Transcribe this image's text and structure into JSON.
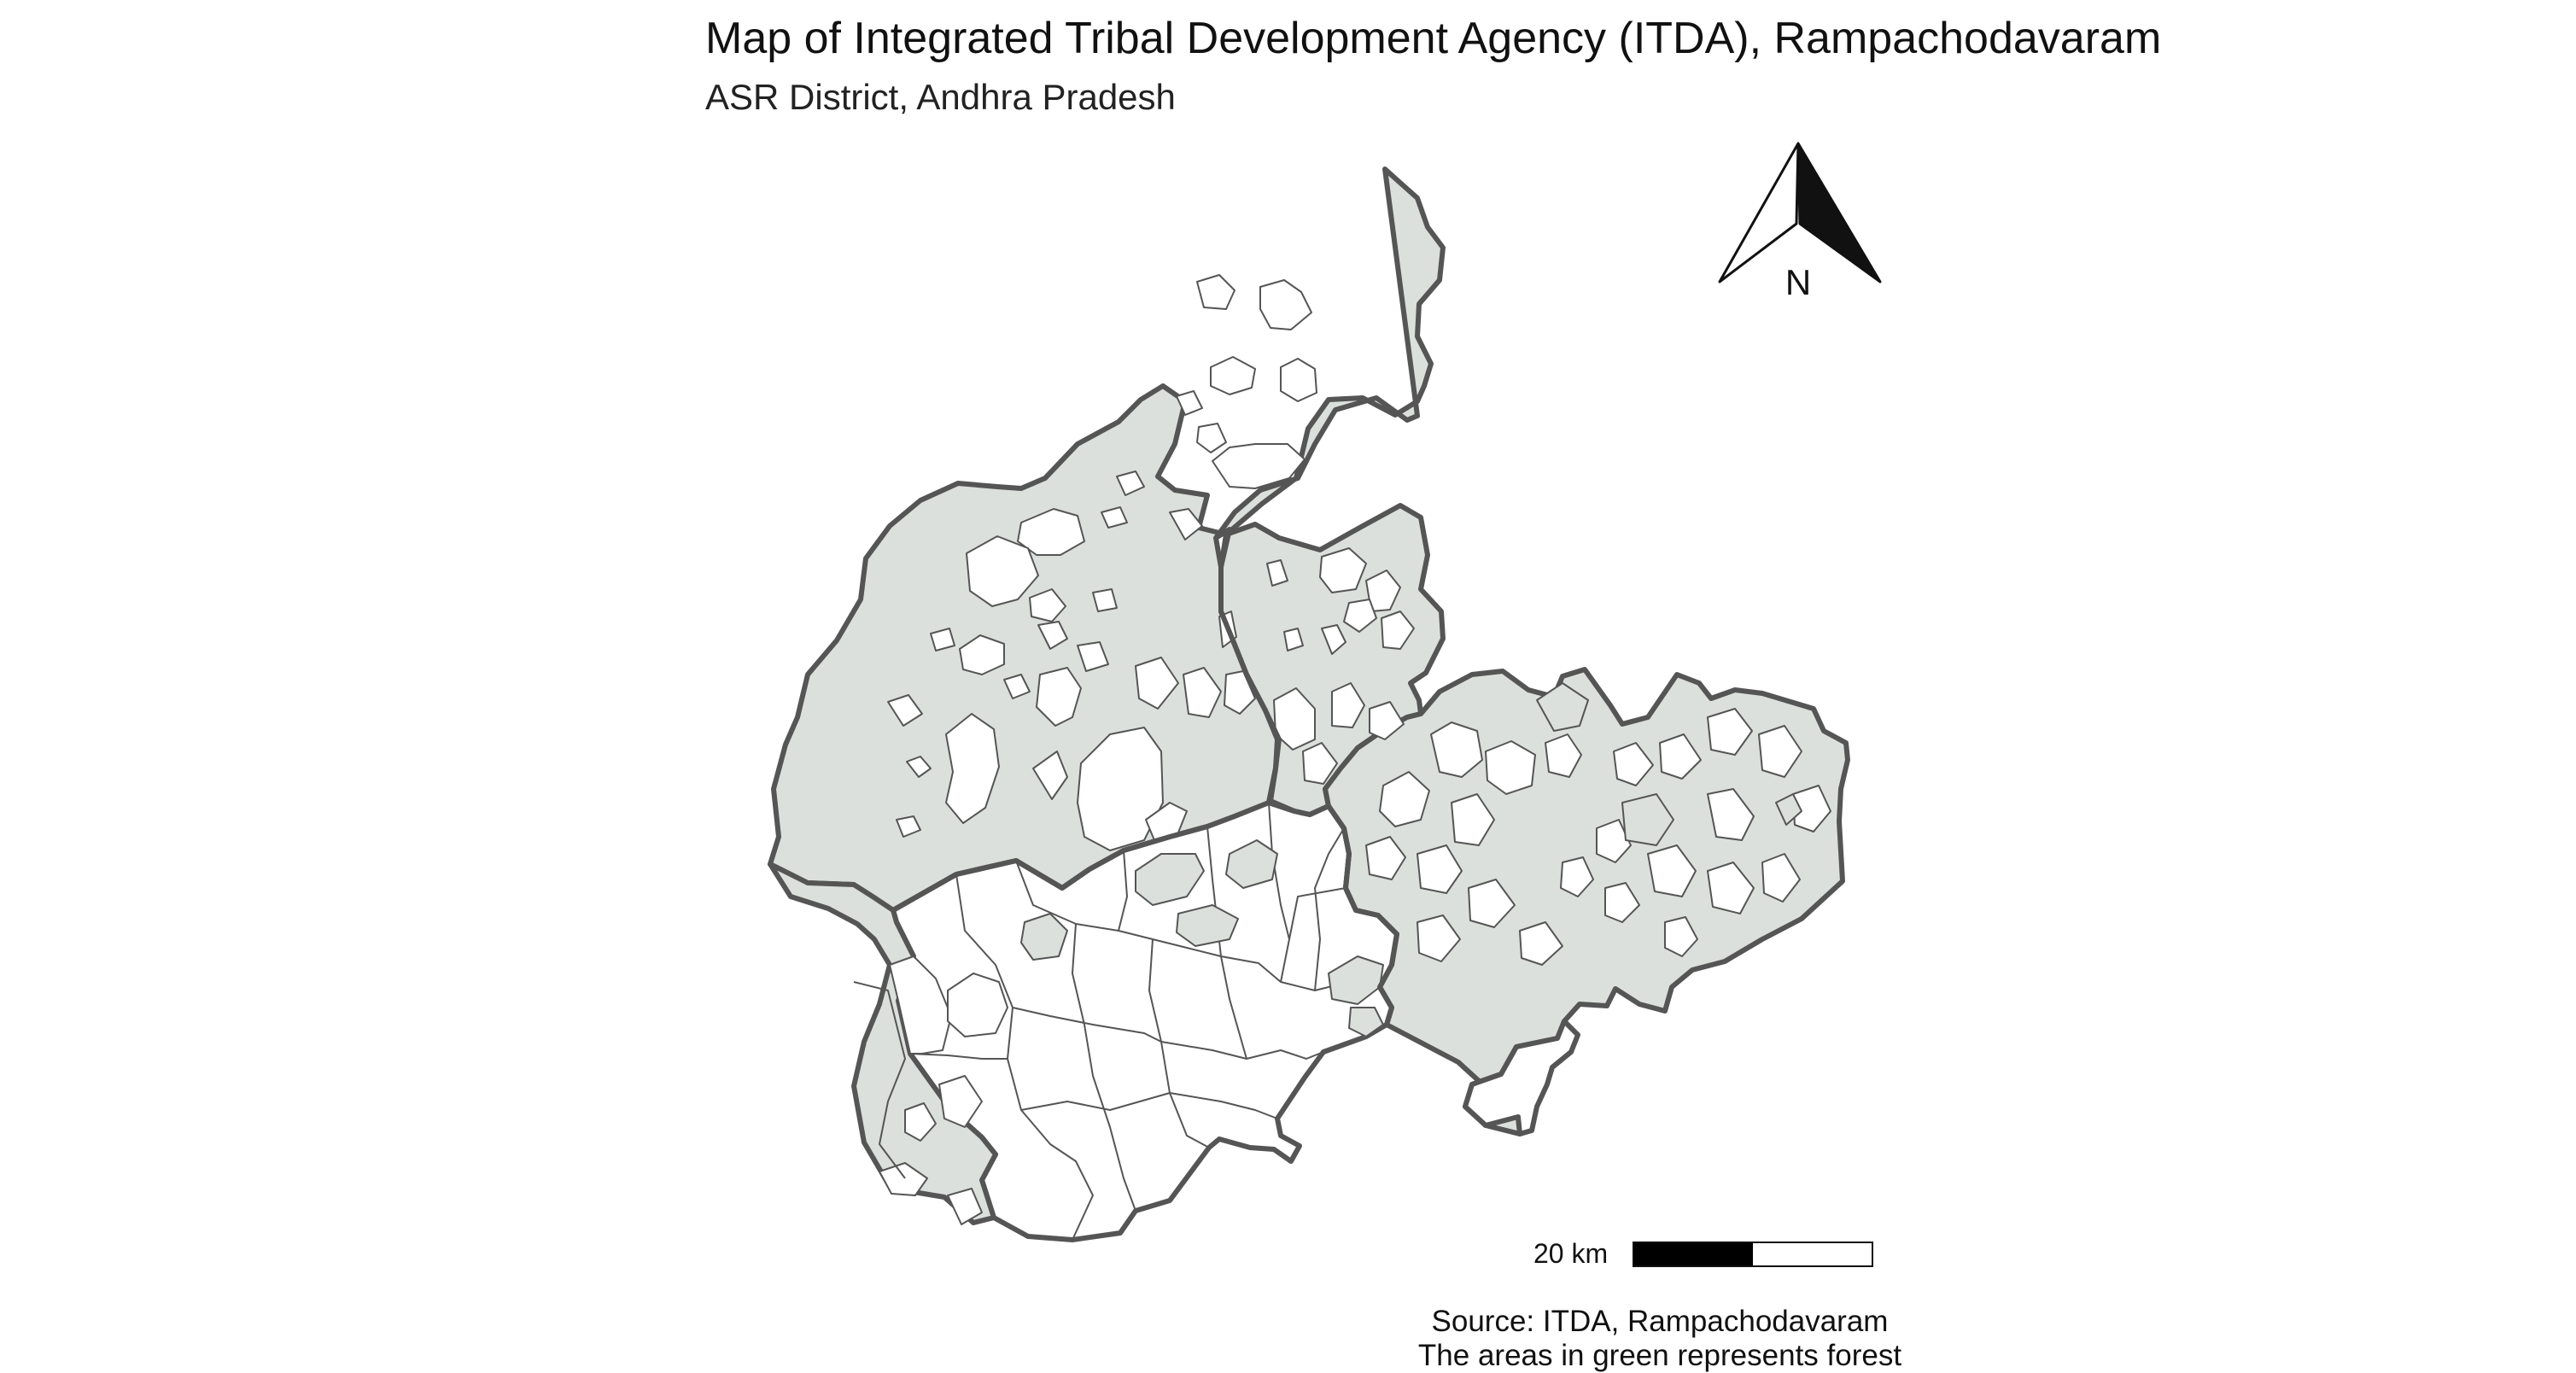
{
  "map": {
    "title": "Map of Integrated Tribal Development Agency (ITDA), Rampachodavaram",
    "subtitle": "ASR District, Andhra Pradesh",
    "north_arrow": {
      "label": "N"
    },
    "scale_bar": {
      "label": "20 km",
      "segments": 2,
      "segment_colors": [
        "#000000",
        "#ffffff"
      ]
    },
    "caption": {
      "source": "Source: ITDA, Rampachodavaram",
      "note": "The areas in green represents forest"
    },
    "colors": {
      "forest": "#dce0dc",
      "non_forest": "#ffffff",
      "outer_boundary": "#555555",
      "internal_boundary": "#555555"
    },
    "legend_meaning": {
      "forest_areas": "The areas in green represents forest"
    }
  }
}
